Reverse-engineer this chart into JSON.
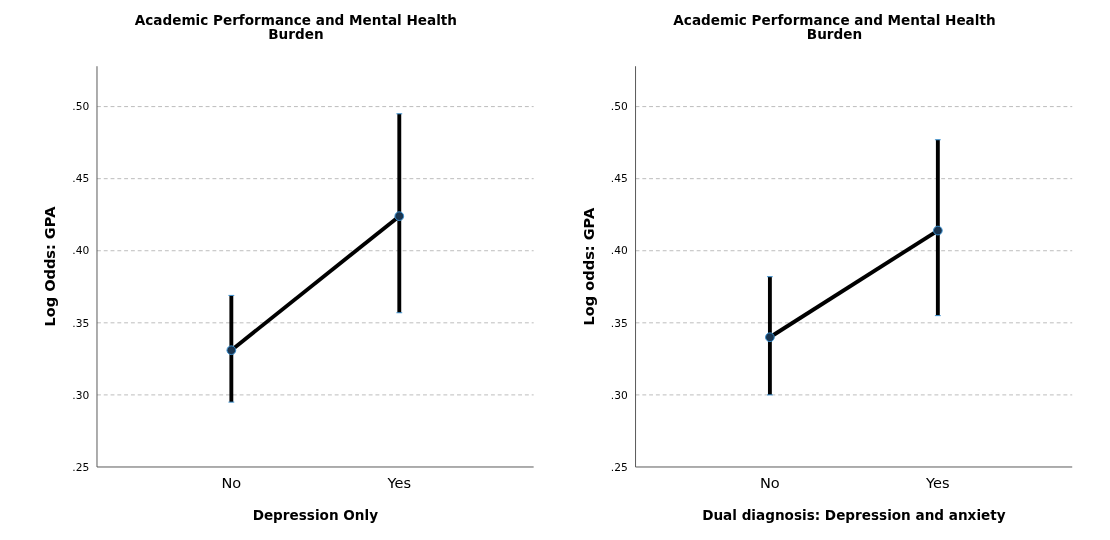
{
  "chart_data": [
    {
      "type": "line",
      "title": "Academic Performance and Mental Health Burden",
      "xlabel": "Depression Only",
      "ylabel": "Log Odds: GPA",
      "categories": [
        "No",
        "Yes"
      ],
      "series": [
        {
          "color": "#000000",
          "values": [
            0.331,
            0.424
          ],
          "errors": [
            [
              0.295,
              0.369
            ],
            [
              0.357,
              0.495
            ]
          ]
        }
      ],
      "ylim": [
        0.25,
        0.528
      ],
      "yticks": [
        {
          "value": 0.25,
          "label": ".25"
        },
        {
          "value": 0.3,
          "label": ".30"
        },
        {
          "value": 0.35,
          "label": ".35"
        },
        {
          "value": 0.4,
          "label": ".40"
        },
        {
          "value": 0.45,
          "label": ".45"
        },
        {
          "value": 0.5,
          "label": ".50"
        }
      ],
      "grid": "y",
      "marker": "circle",
      "line_style": "solid"
    },
    {
      "type": "line",
      "title": "Academic Performance and Mental Health Burden",
      "xlabel": "Dual diagnosis: Depression and anxiety",
      "ylabel": "Log odds: GPA",
      "categories": [
        "No",
        "Yes"
      ],
      "series": [
        {
          "color": "#000000",
          "values": [
            0.34,
            0.414
          ],
          "errors": [
            [
              0.3,
              0.382
            ],
            [
              0.355,
              0.477
            ]
          ]
        }
      ],
      "ylim": [
        0.25,
        0.528
      ],
      "yticks": [
        {
          "value": 0.25,
          "label": ".25"
        },
        {
          "value": 0.3,
          "label": ".30"
        },
        {
          "value": 0.35,
          "label": ".35"
        },
        {
          "value": 0.4,
          "label": ".40"
        },
        {
          "value": 0.45,
          "label": ".45"
        },
        {
          "value": 0.5,
          "label": ".50"
        }
      ],
      "grid": "y",
      "marker": "circle",
      "line_style": "solid"
    }
  ]
}
